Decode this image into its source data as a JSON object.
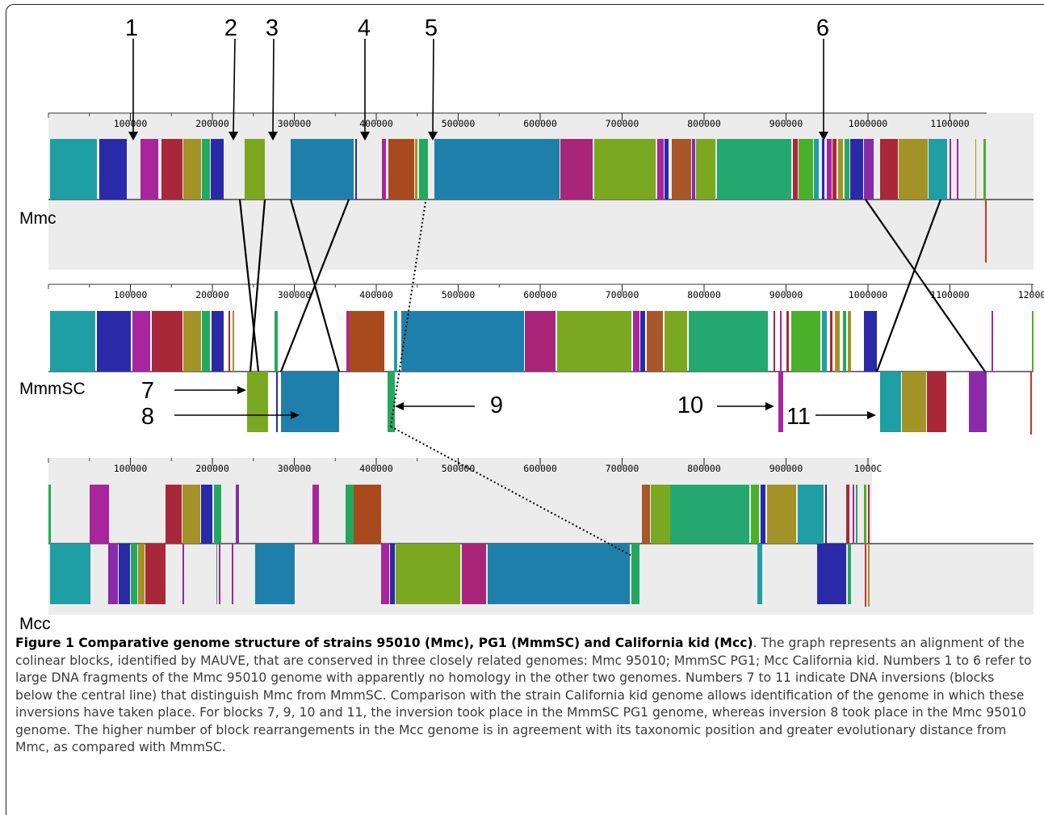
{
  "figure": {
    "top_numbers": [
      "1",
      "2",
      "3",
      "4",
      "5",
      "6"
    ],
    "inversion_numbers": [
      "7",
      "8",
      "9",
      "10",
      "11"
    ],
    "ticks": {
      "mmc": [
        "100000",
        "200000",
        "300000",
        "400000",
        "500000",
        "600000",
        "700000",
        "800000",
        "900000",
        "1000000",
        "1100000"
      ],
      "mmmsc": [
        "100000",
        "200000",
        "300000",
        "400000",
        "500000",
        "600000",
        "700000",
        "800000",
        "900000",
        "1000000",
        "1100000",
        "12000"
      ],
      "mcc": [
        "100000",
        "200000",
        "300000",
        "400000",
        "500000",
        "600000",
        "700000",
        "800000",
        "900000",
        "1000C"
      ]
    },
    "genomes": [
      {
        "label": "Mmc"
      },
      {
        "label": "MmmSC"
      },
      {
        "label": "Mcc"
      }
    ]
  },
  "caption": {
    "title": "Figure 1 Comparative genome structure of strains 95010 (Mmc), PG1 (MmmSC) and California kid (Mcc)",
    "body": ". The graph represents an alignment of the colinear blocks, identified by MAUVE, that are conserved in three closely related genomes: Mmc 95010; MmmSC PG1; Mcc California kid. Numbers 1 to 6 refer to large DNA fragments of the Mmc 95010 genome with apparently no homology in the other two genomes. Numbers 7 to 11 indicate DNA inversions (blocks below the central line) that distinguish Mmc from MmmSC. Comparison with the strain California kid genome allows identification of the genome in which these inversions have taken place. For blocks 7, 9, 10 and 11, the inversion took place in the MmmSC PG1 genome, whereas inversion 8 took place in the Mmc 95010 genome. The higher number of block rearrangements in the Mcc genome is in agreement with its taxonomic position and greater evolutionary distance from Mmc, as compared with MmmSC."
  },
  "colors": {
    "panel": "#ececec",
    "teal": "#1f9fa3",
    "navy": "#2a2aa8",
    "magenta": "#a8259e",
    "crimson": "#a8283a",
    "olive": "#a39226",
    "lime": "#7aa820",
    "blue": "#1f7fab",
    "rust": "#a84a1e",
    "green": "#24a860",
    "purple": "#8a2aa8"
  }
}
